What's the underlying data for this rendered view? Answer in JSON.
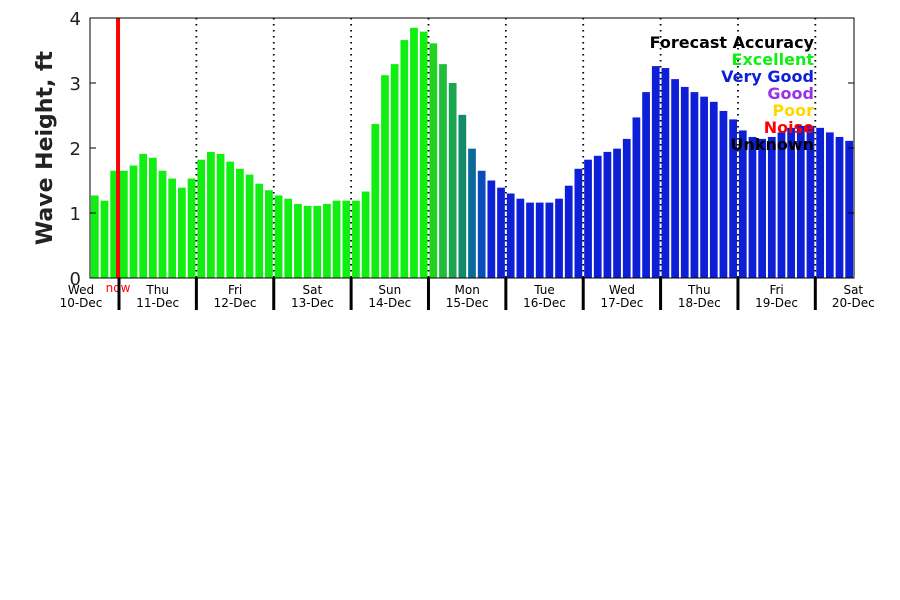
{
  "chart_data": {
    "type": "bar",
    "ylabel": "Wave Height, ft",
    "ylim": [
      0,
      4
    ],
    "yticks": [
      0,
      1,
      2,
      3,
      4
    ],
    "now_label": "now",
    "now_x": 2.9,
    "days": [
      {
        "name": "Wed",
        "date": "10-Dec"
      },
      {
        "name": "Thu",
        "date": "11-Dec"
      },
      {
        "name": "Fri",
        "date": "12-Dec"
      },
      {
        "name": "Sat",
        "date": "13-Dec"
      },
      {
        "name": "Sun",
        "date": "14-Dec"
      },
      {
        "name": "Mon",
        "date": "15-Dec"
      },
      {
        "name": "Tue",
        "date": "16-Dec"
      },
      {
        "name": "Wed",
        "date": "17-Dec"
      },
      {
        "name": "Thu",
        "date": "18-Dec"
      },
      {
        "name": "Fri",
        "date": "19-Dec"
      },
      {
        "name": "Sat",
        "date": "20-Dec"
      }
    ],
    "bars_per_day": 8,
    "values": [
      1.27,
      1.19,
      1.65,
      1.65,
      1.73,
      1.91,
      1.85,
      1.65,
      1.53,
      1.39,
      1.53,
      1.82,
      1.94,
      1.91,
      1.79,
      1.68,
      1.59,
      1.45,
      1.35,
      1.27,
      1.22,
      1.14,
      1.11,
      1.11,
      1.14,
      1.19,
      1.19,
      1.19,
      1.33,
      2.37,
      3.12,
      3.29,
      3.66,
      3.85,
      3.79,
      3.61,
      3.29,
      3.0,
      2.51,
      1.99,
      1.65,
      1.5,
      1.39,
      1.3,
      1.22,
      1.16,
      1.16,
      1.16,
      1.22,
      1.42,
      1.68,
      1.82,
      1.88,
      1.94,
      1.99,
      2.14,
      2.47,
      2.86,
      3.26,
      3.23,
      3.06,
      2.94,
      2.86,
      2.79,
      2.71,
      2.57,
      2.44,
      2.27,
      2.17,
      2.14,
      2.17,
      2.24,
      2.31,
      2.34,
      2.34,
      2.31,
      2.24,
      2.17,
      2.11
    ],
    "bar_colors": [
      "#11ee11",
      "#11ee11",
      "#11ee11",
      "#11ee11",
      "#11ee11",
      "#11ee11",
      "#11ee11",
      "#11ee11",
      "#11ee11",
      "#11ee11",
      "#11ee11",
      "#11ee11",
      "#11ee11",
      "#11ee11",
      "#11ee11",
      "#11ee11",
      "#11ee11",
      "#11ee11",
      "#11ee11",
      "#11ee11",
      "#11ee11",
      "#11ee11",
      "#11ee11",
      "#11ee11",
      "#11ee11",
      "#11ee11",
      "#11ee11",
      "#11ee11",
      "#11ee11",
      "#11ee11",
      "#11ee11",
      "#11ee11",
      "#11ee11",
      "#11ee11",
      "#11ee11",
      "#22d222",
      "#22bd3a",
      "#1aa550",
      "#138a6a",
      "#0a6a98",
      "#0a4cba",
      "#0e1fd8",
      "#0e1fd8",
      "#0e1fd8",
      "#0e1fd8",
      "#0e1fd8",
      "#0e1fd8",
      "#0e1fd8",
      "#0e1fd8",
      "#0e1fd8",
      "#0e1fd8",
      "#0e1fd8",
      "#0e1fd8",
      "#0e1fd8",
      "#0e1fd8",
      "#0e1fd8",
      "#0e1fd8",
      "#0e1fd8",
      "#0e1fd8",
      "#0e1fd8",
      "#0e1fd8",
      "#0e1fd8",
      "#0e1fd8",
      "#0e1fd8",
      "#0e1fd8",
      "#0e1fd8",
      "#0e1fd8",
      "#0e1fd8",
      "#0e1fd8",
      "#0e1fd8",
      "#0e1fd8",
      "#0e1fd8",
      "#0e1fd8",
      "#0e1fd8",
      "#0e1fd8",
      "#0e1fd8",
      "#0e1fd8",
      "#0e1fd8",
      "#0e1fd8"
    ],
    "legend": {
      "title": "Forecast Accuracy",
      "entries": [
        {
          "label": "Excellent",
          "color": "#11ee11"
        },
        {
          "label": "Very Good",
          "color": "#0e1fd8"
        },
        {
          "label": "Good",
          "color": "#9a32e6"
        },
        {
          "label": "Poor",
          "color": "#ffd700"
        },
        {
          "label": "Noise",
          "color": "#ff0000"
        },
        {
          "label": "Unknown",
          "color": "#000000"
        }
      ],
      "placement": "top-right"
    },
    "grid": "vertical dotted lines at midnight"
  }
}
